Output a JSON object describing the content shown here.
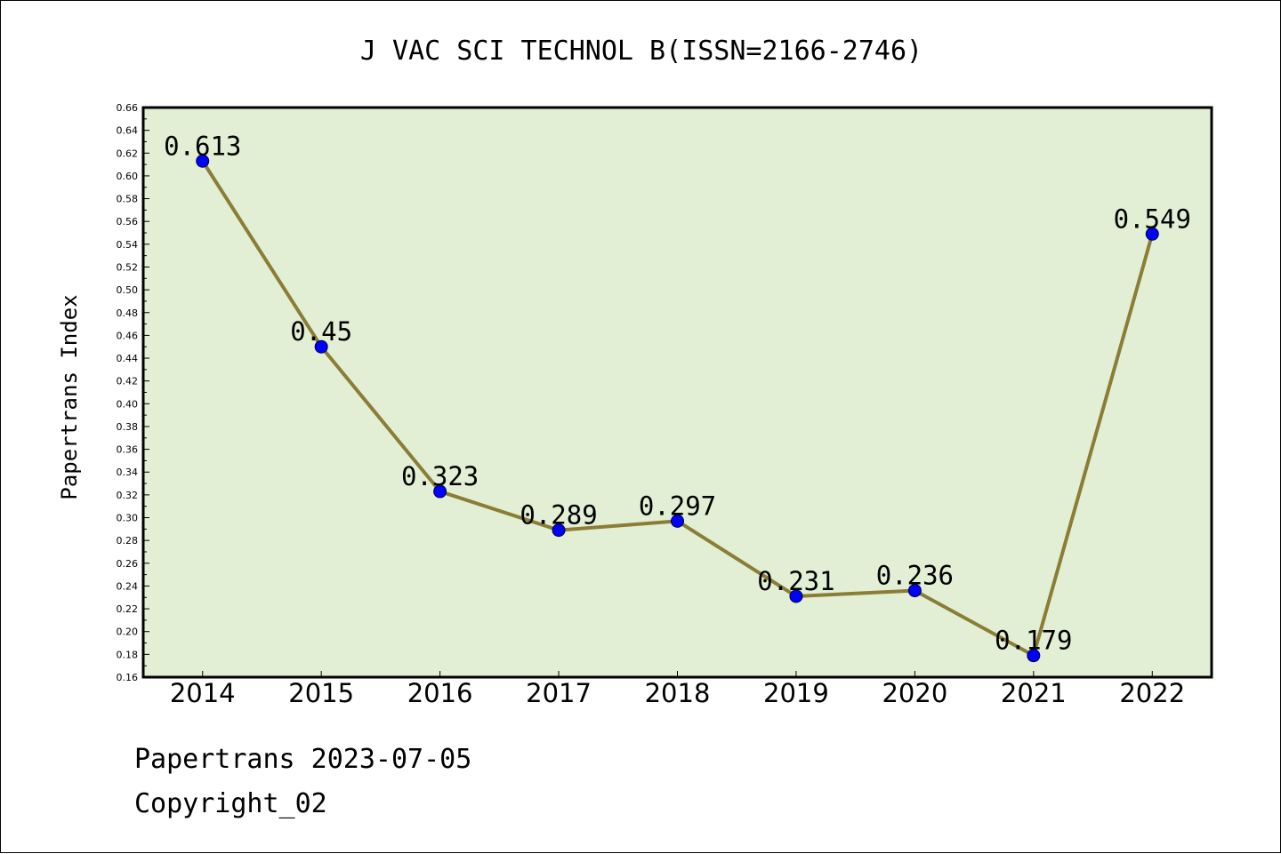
{
  "chart_data": {
    "type": "line",
    "title": "J VAC SCI TECHNOL B(ISSN=2166-2746)",
    "xlabel": "",
    "ylabel": "Papertrans Index",
    "categories": [
      "2014",
      "2015",
      "2016",
      "2017",
      "2018",
      "2019",
      "2020",
      "2021",
      "2022"
    ],
    "values": [
      0.613,
      0.45,
      0.323,
      0.289,
      0.297,
      0.231,
      0.236,
      0.179,
      0.549
    ],
    "data_labels": [
      "0.613",
      "0.45",
      "0.323",
      "0.289",
      "0.297",
      "0.231",
      "0.236",
      "0.179",
      "0.549"
    ],
    "ylim": [
      0.16,
      0.66
    ],
    "ytick_step": 0.02,
    "grid": false,
    "legend": "none",
    "colors": {
      "plot_background": "#e2efd5",
      "line": "#8b7d35",
      "marker": "#0000ff"
    }
  },
  "footer": {
    "line1": "Papertrans 2023-07-05",
    "line2": "Copyright_02"
  }
}
